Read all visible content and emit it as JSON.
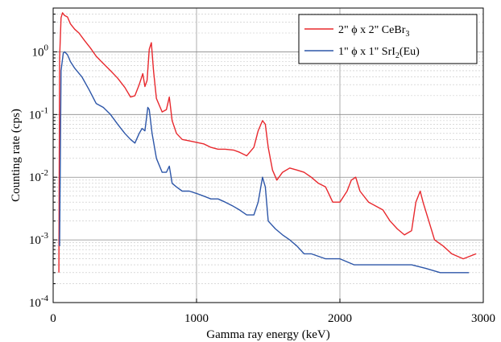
{
  "chart_data": {
    "type": "line",
    "xlabel": "Gamma ray energy (keV)",
    "ylabel": "Counting rate (cps)",
    "xlim": [
      0,
      3000
    ],
    "ylim": [
      0.0001,
      5
    ],
    "y_scale": "log",
    "grid": true,
    "legend_position": "top-right",
    "x_ticks": [
      {
        "value": 0,
        "label": "0"
      },
      {
        "value": 1000,
        "label": "1000"
      },
      {
        "value": 2000,
        "label": "2000"
      },
      {
        "value": 3000,
        "label": "3000"
      }
    ],
    "y_ticks": [
      {
        "value": 0.0001,
        "base": "10",
        "exp": "-4"
      },
      {
        "value": 0.001,
        "base": "10",
        "exp": "-3"
      },
      {
        "value": 0.01,
        "base": "10",
        "exp": "-2"
      },
      {
        "value": 0.1,
        "base": "10",
        "exp": "-1"
      },
      {
        "value": 1,
        "base": "10",
        "exp": "0"
      }
    ],
    "series": [
      {
        "name": "2\" ϕ x 2\" CeBr3",
        "legend": {
          "pre": "2\" ϕ x 2\" CeBr",
          "sub": "3",
          "post": ""
        },
        "color": "#e8282d",
        "points": [
          [
            40,
            0.0003
          ],
          [
            45,
            0.8
          ],
          [
            55,
            3.5
          ],
          [
            65,
            4.2
          ],
          [
            80,
            3.8
          ],
          [
            100,
            3.6
          ],
          [
            120,
            2.8
          ],
          [
            150,
            2.3
          ],
          [
            180,
            2.0
          ],
          [
            220,
            1.5
          ],
          [
            260,
            1.15
          ],
          [
            300,
            0.85
          ],
          [
            350,
            0.65
          ],
          [
            400,
            0.5
          ],
          [
            450,
            0.38
          ],
          [
            500,
            0.27
          ],
          [
            540,
            0.19
          ],
          [
            570,
            0.2
          ],
          [
            600,
            0.3
          ],
          [
            625,
            0.45
          ],
          [
            640,
            0.28
          ],
          [
            655,
            0.35
          ],
          [
            670,
            1.1
          ],
          [
            685,
            1.4
          ],
          [
            700,
            0.5
          ],
          [
            720,
            0.18
          ],
          [
            760,
            0.11
          ],
          [
            790,
            0.12
          ],
          [
            810,
            0.19
          ],
          [
            830,
            0.08
          ],
          [
            860,
            0.05
          ],
          [
            900,
            0.04
          ],
          [
            950,
            0.038
          ],
          [
            1000,
            0.036
          ],
          [
            1050,
            0.034
          ],
          [
            1100,
            0.03
          ],
          [
            1150,
            0.028
          ],
          [
            1200,
            0.028
          ],
          [
            1260,
            0.027
          ],
          [
            1300,
            0.025
          ],
          [
            1350,
            0.022
          ],
          [
            1400,
            0.03
          ],
          [
            1430,
            0.055
          ],
          [
            1460,
            0.08
          ],
          [
            1480,
            0.07
          ],
          [
            1500,
            0.03
          ],
          [
            1530,
            0.013
          ],
          [
            1560,
            0.009
          ],
          [
            1600,
            0.012
          ],
          [
            1650,
            0.014
          ],
          [
            1700,
            0.013
          ],
          [
            1750,
            0.012
          ],
          [
            1800,
            0.01
          ],
          [
            1850,
            0.008
          ],
          [
            1900,
            0.007
          ],
          [
            1950,
            0.004
          ],
          [
            2000,
            0.004
          ],
          [
            2050,
            0.006
          ],
          [
            2080,
            0.009
          ],
          [
            2110,
            0.01
          ],
          [
            2140,
            0.006
          ],
          [
            2200,
            0.004
          ],
          [
            2300,
            0.003
          ],
          [
            2350,
            0.002
          ],
          [
            2400,
            0.0015
          ],
          [
            2450,
            0.0012
          ],
          [
            2500,
            0.0014
          ],
          [
            2530,
            0.004
          ],
          [
            2560,
            0.006
          ],
          [
            2580,
            0.004
          ],
          [
            2620,
            0.002
          ],
          [
            2660,
            0.001
          ],
          [
            2720,
            0.0008
          ],
          [
            2780,
            0.0006
          ],
          [
            2860,
            0.0005
          ],
          [
            2950,
            0.0006
          ]
        ]
      },
      {
        "name": "1\" ϕ x 1\" SrI2(Eu)",
        "legend": {
          "pre": "1\" ϕ x 1\" SrI",
          "sub": "2",
          "post": "(Eu)"
        },
        "color": "#2d56a8",
        "points": [
          [
            45,
            0.0008
          ],
          [
            55,
            0.5
          ],
          [
            70,
            0.95
          ],
          [
            80,
            1.0
          ],
          [
            100,
            0.9
          ],
          [
            120,
            0.7
          ],
          [
            150,
            0.55
          ],
          [
            200,
            0.4
          ],
          [
            250,
            0.25
          ],
          [
            300,
            0.15
          ],
          [
            350,
            0.13
          ],
          [
            400,
            0.1
          ],
          [
            450,
            0.07
          ],
          [
            500,
            0.05
          ],
          [
            540,
            0.04
          ],
          [
            570,
            0.035
          ],
          [
            600,
            0.05
          ],
          [
            620,
            0.06
          ],
          [
            640,
            0.055
          ],
          [
            660,
            0.13
          ],
          [
            670,
            0.12
          ],
          [
            690,
            0.05
          ],
          [
            720,
            0.02
          ],
          [
            760,
            0.012
          ],
          [
            790,
            0.012
          ],
          [
            810,
            0.015
          ],
          [
            830,
            0.008
          ],
          [
            860,
            0.007
          ],
          [
            900,
            0.006
          ],
          [
            950,
            0.006
          ],
          [
            1000,
            0.0055
          ],
          [
            1050,
            0.005
          ],
          [
            1100,
            0.0045
          ],
          [
            1150,
            0.0045
          ],
          [
            1200,
            0.004
          ],
          [
            1250,
            0.0035
          ],
          [
            1300,
            0.003
          ],
          [
            1350,
            0.0025
          ],
          [
            1400,
            0.0025
          ],
          [
            1430,
            0.004
          ],
          [
            1460,
            0.01
          ],
          [
            1480,
            0.007
          ],
          [
            1500,
            0.002
          ],
          [
            1550,
            0.0015
          ],
          [
            1600,
            0.0012
          ],
          [
            1650,
            0.001
          ],
          [
            1700,
            0.0008
          ],
          [
            1750,
            0.0006
          ],
          [
            1800,
            0.0006
          ],
          [
            1900,
            0.0005
          ],
          [
            2000,
            0.0005
          ],
          [
            2100,
            0.0004
          ],
          [
            2200,
            0.0004
          ],
          [
            2300,
            0.0004
          ],
          [
            2400,
            0.0004
          ],
          [
            2500,
            0.0004
          ],
          [
            2600,
            0.00035
          ],
          [
            2700,
            0.0003
          ],
          [
            2800,
            0.0003
          ],
          [
            2900,
            0.0003
          ]
        ]
      }
    ]
  }
}
